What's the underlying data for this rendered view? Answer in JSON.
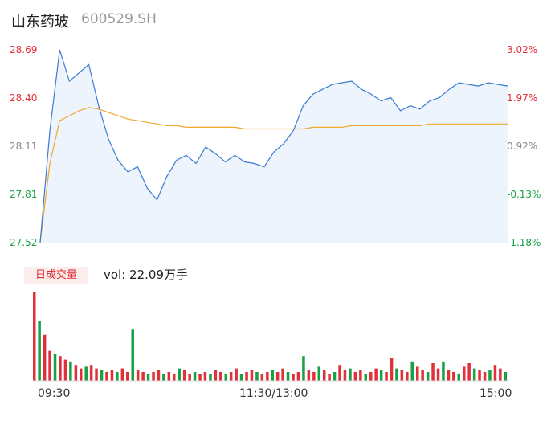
{
  "header": {
    "name": "山东药玻",
    "code": "600529.SH"
  },
  "y_price_labels": [
    "28.69",
    "28.40",
    "28.11",
    "27.81",
    "27.52"
  ],
  "y_pct_labels": [
    "3.02%",
    "1.97%",
    "0.92%",
    "-0.13%",
    "-1.18%"
  ],
  "volume": {
    "tab_label": "日成交量",
    "text": "vol: 22.09万手"
  },
  "x_labels": [
    "09:30",
    "11:30/13:00",
    "15:00"
  ],
  "colors": {
    "price": "#3a7bd5",
    "avg": "#f0a830",
    "up": "#e0303a",
    "down": "#17a046"
  },
  "chart_data": [
    {
      "type": "line",
      "x": [
        "09:30",
        "09:35",
        "09:40",
        "09:45",
        "09:50",
        "09:55",
        "10:00",
        "10:05",
        "10:10",
        "10:15",
        "10:20",
        "10:25",
        "10:30",
        "10:35",
        "10:40",
        "10:45",
        "10:50",
        "10:55",
        "11:00",
        "11:05",
        "11:10",
        "11:15",
        "11:20",
        "11:25",
        "11:30",
        "13:05",
        "13:10",
        "13:15",
        "13:20",
        "13:25",
        "13:30",
        "13:35",
        "13:40",
        "13:45",
        "13:50",
        "13:55",
        "14:00",
        "14:05",
        "14:10",
        "14:15",
        "14:20",
        "14:25",
        "14:30",
        "14:35",
        "14:40",
        "14:45",
        "14:50",
        "14:55",
        "15:00"
      ],
      "series": [
        {
          "values": [
            27.52,
            28.2,
            28.69,
            28.5,
            28.55,
            28.6,
            28.35,
            28.15,
            28.02,
            27.95,
            27.98,
            27.85,
            27.78,
            27.92,
            28.02,
            28.05,
            28.0,
            28.1,
            28.06,
            28.01,
            28.05,
            28.01,
            28.0,
            27.98,
            28.07,
            28.12,
            28.2,
            28.35,
            28.42,
            28.45,
            28.48,
            28.49,
            28.5,
            28.45,
            28.42,
            28.38,
            28.4,
            28.32,
            28.35,
            28.33,
            28.38,
            28.4,
            28.45,
            28.49,
            28.48,
            28.47,
            28.49,
            28.48,
            28.47
          ]
        },
        {
          "values": [
            27.52,
            28.0,
            28.26,
            28.29,
            28.32,
            28.34,
            28.33,
            28.31,
            28.29,
            28.27,
            28.26,
            28.25,
            28.24,
            28.23,
            28.23,
            28.22,
            28.22,
            28.22,
            28.22,
            28.22,
            28.22,
            28.21,
            28.21,
            28.21,
            28.21,
            28.21,
            28.21,
            28.21,
            28.22,
            28.22,
            28.22,
            28.22,
            28.23,
            28.23,
            28.23,
            28.23,
            28.23,
            28.23,
            28.23,
            28.23,
            28.24,
            28.24,
            28.24,
            28.24,
            28.24,
            28.24,
            28.24,
            28.24,
            28.24
          ]
        }
      ],
      "ylim": [
        27.52,
        28.69
      ]
    },
    {
      "type": "bar",
      "series": [
        {
          "values": [
            100,
            68,
            52,
            34,
            30,
            28,
            24,
            22,
            18,
            14,
            16,
            18,
            14,
            12,
            10,
            12,
            10,
            14,
            10,
            58,
            12,
            10,
            8,
            10,
            12,
            8,
            10,
            8,
            14,
            12,
            8,
            10,
            8,
            10,
            8,
            12,
            10,
            8,
            10,
            14,
            8,
            10,
            12,
            10,
            8,
            10,
            12,
            10,
            14,
            10,
            8,
            10,
            28,
            12,
            10,
            16,
            12,
            8,
            10,
            18,
            12,
            14,
            10,
            12,
            8,
            10,
            14,
            12,
            10,
            26,
            14,
            12,
            10,
            22,
            16,
            12,
            10,
            20,
            14,
            22,
            12,
            10,
            8,
            16,
            20,
            14,
            12,
            10,
            12,
            18,
            14,
            10
          ]
        }
      ]
    }
  ]
}
